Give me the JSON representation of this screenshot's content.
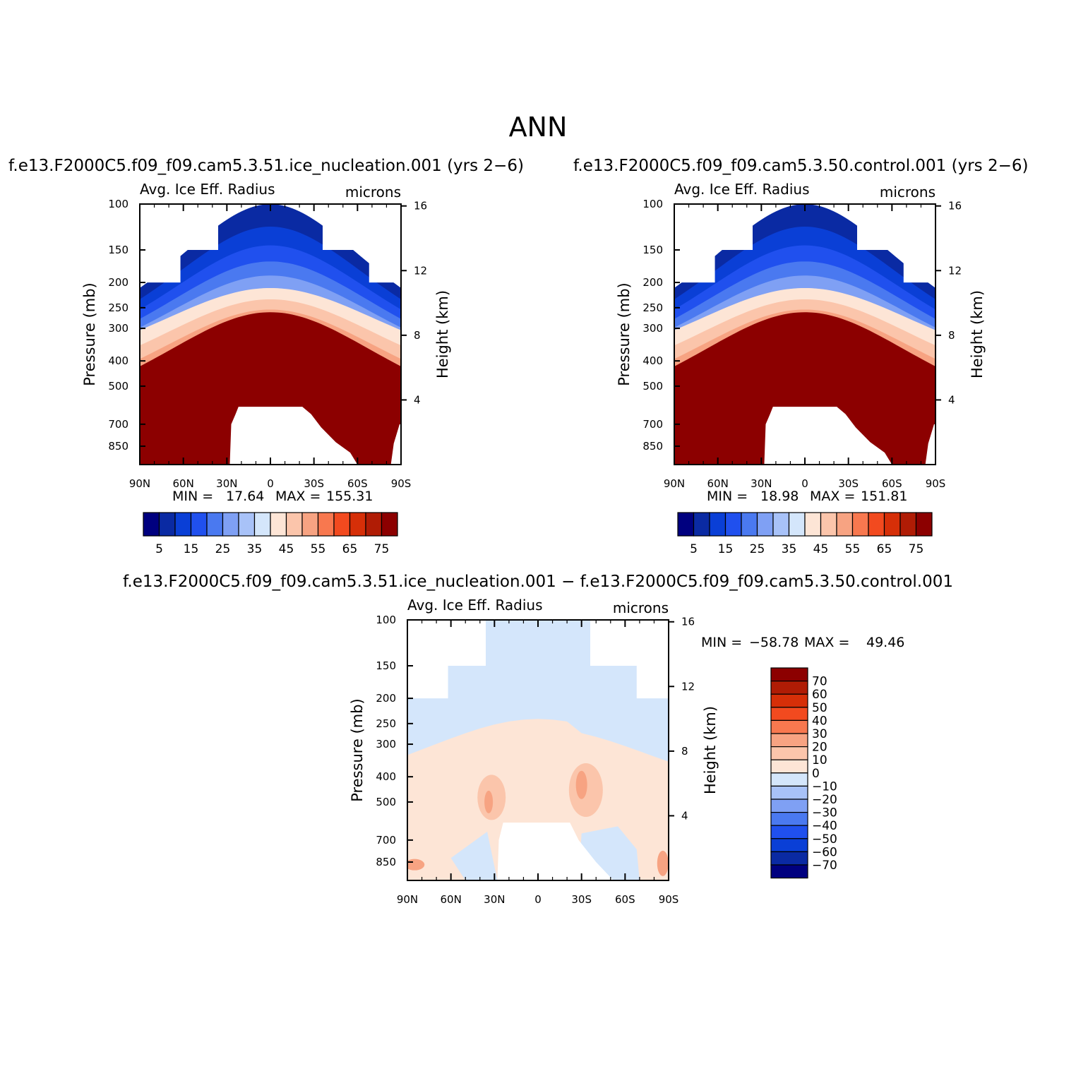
{
  "page": {
    "title": "ANN"
  },
  "colors": {
    "palette_15": [
      "#00007f",
      "#0a2aa3",
      "#0a3fd6",
      "#2050ee",
      "#4a79f0",
      "#7fa0f4",
      "#a8c2f8",
      "#d4e6fb",
      "#fde5d6",
      "#fbc5ab",
      "#f7a382",
      "#f8784f",
      "#f24a1f",
      "#d62f08",
      "#b01c05",
      "#8c0000"
    ],
    "diff_levels": {
      "-70": "#00007f",
      "-60": "#0a2aa3",
      "-50": "#0a3fd6",
      "-40": "#2050ee",
      "-30": "#4a79f0",
      "-20": "#7fa0f4",
      "-10": "#a8c2f8",
      "0": "#d4e6fb",
      "10": "#fde5d6",
      "20": "#fbc5ab",
      "30": "#f7a382",
      "40": "#f8784f",
      "50": "#f24a1f",
      "60": "#d62f08",
      "70": "#b01c05",
      "80": "#8c0000"
    }
  },
  "chart_data": [
    {
      "type": "heatmap",
      "panel": "test",
      "title": "f.e13.F2000C5.f09_f09.cam5.3.51.ice_nucleation.001 (yrs 2−6)",
      "left_string": "Avg. Ice Eff. Radius",
      "right_string": "microns",
      "ylabel": "Pressure (mb)",
      "ylabel_right": "Height (km)",
      "x_ticks": [
        "90N",
        "60N",
        "30N",
        "0",
        "30S",
        "60S",
        "90S"
      ],
      "y_ticks": [
        "100",
        "150",
        "200",
        "250",
        "300",
        "400",
        "500",
        "700",
        "850"
      ],
      "y_right_ticks": [
        "16",
        "12",
        "8",
        "4"
      ],
      "xlim": [
        90,
        -90
      ],
      "ylim_mb": [
        100,
        1000
      ],
      "min_label": "MIN =",
      "min_value": "17.64",
      "max_label": "MAX =",
      "max_value": "155.31",
      "colorbar_levels": [
        "5",
        "15",
        "25",
        "35",
        "45",
        "55",
        "65",
        "75"
      ]
    },
    {
      "type": "heatmap",
      "panel": "control",
      "title": "f.e13.F2000C5.f09_f09.cam5.3.50.control.001 (yrs 2−6)",
      "left_string": "Avg. Ice Eff. Radius",
      "right_string": "microns",
      "ylabel": "Pressure (mb)",
      "ylabel_right": "Height (km)",
      "x_ticks": [
        "90N",
        "60N",
        "30N",
        "0",
        "30S",
        "60S",
        "90S"
      ],
      "y_ticks": [
        "100",
        "150",
        "200",
        "250",
        "300",
        "400",
        "500",
        "700",
        "850"
      ],
      "y_right_ticks": [
        "16",
        "12",
        "8",
        "4"
      ],
      "xlim": [
        90,
        -90
      ],
      "ylim_mb": [
        100,
        1000
      ],
      "min_label": "MIN =",
      "min_value": "18.98",
      "max_label": "MAX =",
      "max_value": "151.81",
      "colorbar_levels": [
        "5",
        "15",
        "25",
        "35",
        "45",
        "55",
        "65",
        "75"
      ]
    },
    {
      "type": "heatmap",
      "panel": "difference",
      "title": "f.e13.F2000C5.f09_f09.cam5.3.51.ice_nucleation.001 − f.e13.F2000C5.f09_f09.cam5.3.50.control.001",
      "left_string": "Avg. Ice Eff. Radius",
      "right_string": "microns",
      "ylabel": "Pressure (mb)",
      "ylabel_right": "Height (km)",
      "x_ticks": [
        "90N",
        "60N",
        "30N",
        "0",
        "30S",
        "60S",
        "90S"
      ],
      "y_ticks": [
        "100",
        "150",
        "200",
        "250",
        "300",
        "400",
        "500",
        "700",
        "850"
      ],
      "y_right_ticks": [
        "16",
        "12",
        "8",
        "4"
      ],
      "xlim": [
        90,
        -90
      ],
      "ylim_mb": [
        100,
        1000
      ],
      "min_label": "MIN =",
      "min_value": "−58.78",
      "max_label": "MAX =",
      "max_value": "49.46",
      "colorbar_levels": [
        "70",
        "60",
        "50",
        "40",
        "30",
        "20",
        "10",
        "0",
        "−10",
        "−20",
        "−30",
        "−40",
        "−50",
        "−60",
        "−70"
      ]
    }
  ]
}
